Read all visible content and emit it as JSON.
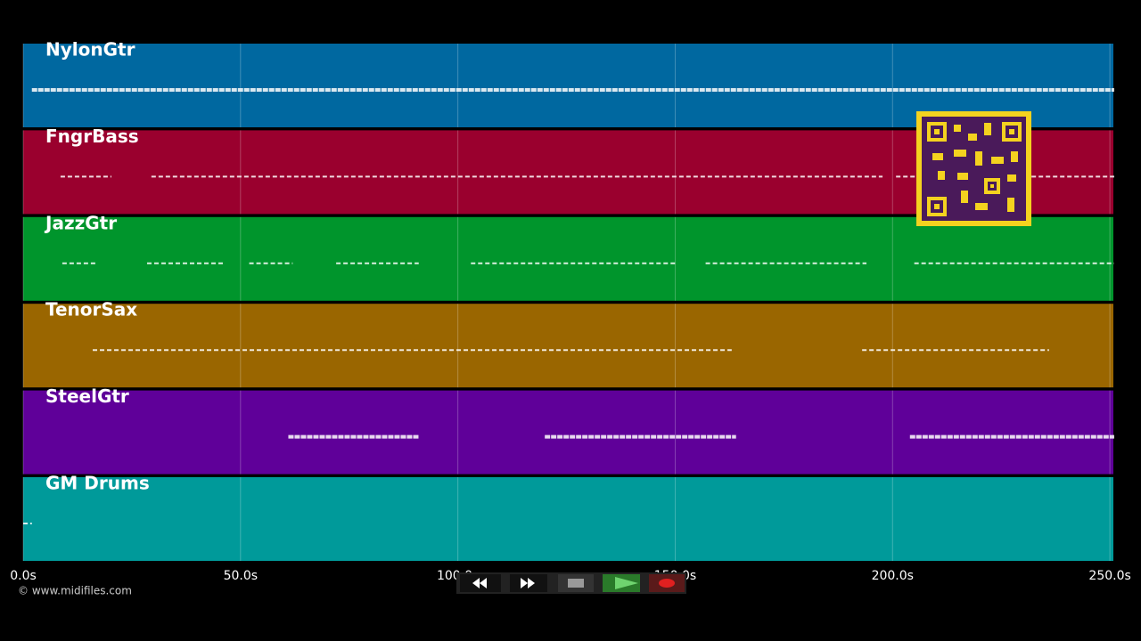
{
  "tracks": [
    {
      "name": "NylonGtr",
      "color": "#0068a0",
      "note_spans": [
        [
          2,
          251
        ]
      ]
    },
    {
      "name": "FngrBass",
      "color": "#9a002e",
      "note_spans": [
        [
          8.6,
          20.3
        ],
        [
          29.5,
          197.7
        ],
        [
          200.8,
          251
        ]
      ]
    },
    {
      "name": "JazzGtr",
      "color": "#00952c",
      "note_spans": [
        [
          9,
          17
        ],
        [
          28.5,
          46
        ],
        [
          52,
          62
        ],
        [
          72,
          91
        ],
        [
          103,
          150
        ],
        [
          157,
          194
        ],
        [
          205,
          251
        ]
      ]
    },
    {
      "name": "TenorSax",
      "color": "#9a6600",
      "note_spans": [
        [
          16,
          163
        ],
        [
          193,
          236
        ]
      ]
    },
    {
      "name": "SteelGtr",
      "color": "#5f0099",
      "note_spans": [
        [
          61,
          91
        ],
        [
          120,
          164
        ],
        [
          204,
          251
        ]
      ]
    },
    {
      "name": "GM Drums",
      "color": "#009a9a",
      "note_spans": [
        [
          0,
          2
        ]
      ]
    }
  ],
  "time_axis": {
    "xlim": [
      0,
      250.8
    ],
    "xticks": [
      {
        "value": 0,
        "label": "0.0s"
      },
      {
        "value": 50,
        "label": "50.0s"
      },
      {
        "value": 100,
        "label": "100.0s"
      },
      {
        "value": 150,
        "label": "150.0s"
      },
      {
        "value": 200,
        "label": "200.0s"
      },
      {
        "value": 250,
        "label": "250.0s"
      }
    ]
  },
  "footer": {
    "copyright": "© www.midifiles.com"
  }
}
